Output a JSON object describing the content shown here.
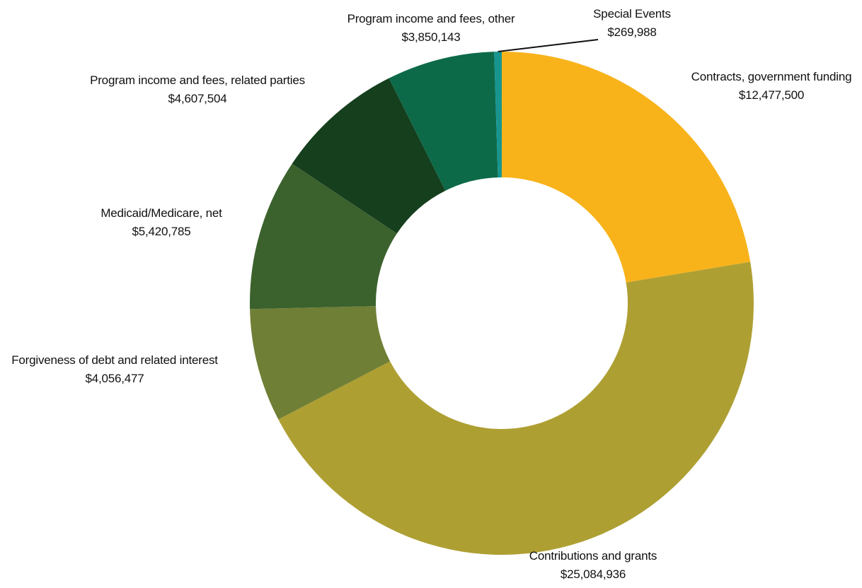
{
  "chart_data": {
    "type": "pie",
    "style": "donut",
    "title": "",
    "slices": [
      {
        "label": "Contracts, government funding",
        "value": "$12,477,500",
        "amount": 12477500,
        "color": "#F8B31B"
      },
      {
        "label": "Contributions and grants",
        "value": "$25,084,936",
        "amount": 25084936,
        "color": "#AE9F33"
      },
      {
        "label": "Forgiveness of debt and related interest",
        "value": "$4,056,477",
        "amount": 4056477,
        "color": "#6F7F36"
      },
      {
        "label": "Medicaid/Medicare, net",
        "value": "$5,420,785",
        "amount": 5420785,
        "color": "#3B622D"
      },
      {
        "label": "Program income and fees, related parties",
        "value": "$4,607,504",
        "amount": 4607504,
        "color": "#153F1D"
      },
      {
        "label": "Program income and fees, other",
        "value": "$3,850,143",
        "amount": 3850143,
        "color": "#0D6A48"
      },
      {
        "label": "Special Events",
        "value": "$269,988",
        "amount": 269988,
        "color": "#18958F"
      }
    ],
    "legend": "none"
  }
}
